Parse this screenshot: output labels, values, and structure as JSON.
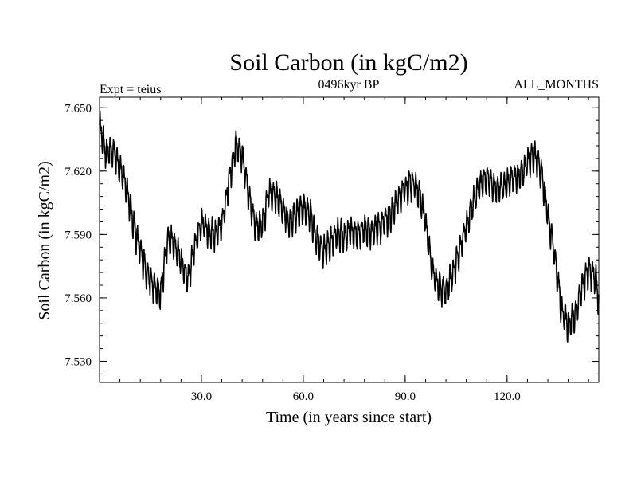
{
  "chart_data": {
    "type": "line",
    "title": "Soil Carbon (in kgC/m2)",
    "subtitle_left": "Expt = teius",
    "subtitle_center": "0496kyr BP",
    "subtitle_right": "ALL_MONTHS",
    "xlabel": "Time (in years since start)",
    "ylabel": "Soil Carbon (in kgC/m2)",
    "xlim": [
      0,
      147
    ],
    "ylim": [
      7.52,
      7.655
    ],
    "xticks": [
      30,
      60,
      90,
      120
    ],
    "xtick_labels": [
      "30.0",
      "60.0",
      "90.0",
      "120.0"
    ],
    "yticks": [
      7.53,
      7.56,
      7.59,
      7.62,
      7.65
    ],
    "ytick_labels": [
      "7.530",
      "7.560",
      "7.590",
      "7.620",
      "7.650"
    ],
    "grid": false,
    "series": [
      {
        "name": "Soil Carbon",
        "color": "#000000",
        "x": [
          0,
          2,
          4,
          6,
          8,
          10,
          12,
          14,
          16,
          18,
          20,
          22,
          24,
          26,
          28,
          30,
          32,
          34,
          36,
          38,
          40,
          42,
          44,
          46,
          48,
          50,
          52,
          54,
          56,
          58,
          60,
          62,
          64,
          66,
          68,
          70,
          72,
          74,
          76,
          78,
          80,
          82,
          84,
          86,
          88,
          90,
          92,
          94,
          96,
          98,
          100,
          102,
          104,
          106,
          108,
          110,
          112,
          114,
          116,
          118,
          120,
          122,
          124,
          126,
          128,
          130,
          132,
          134,
          136,
          138,
          140,
          142,
          144,
          146,
          147
        ],
        "values": [
          7.642,
          7.628,
          7.63,
          7.622,
          7.612,
          7.595,
          7.582,
          7.572,
          7.565,
          7.562,
          7.588,
          7.586,
          7.578,
          7.568,
          7.584,
          7.596,
          7.592,
          7.59,
          7.594,
          7.615,
          7.632,
          7.628,
          7.608,
          7.593,
          7.595,
          7.61,
          7.608,
          7.602,
          7.596,
          7.6,
          7.603,
          7.6,
          7.587,
          7.582,
          7.586,
          7.591,
          7.589,
          7.592,
          7.59,
          7.593,
          7.591,
          7.594,
          7.596,
          7.6,
          7.606,
          7.612,
          7.615,
          7.61,
          7.596,
          7.572,
          7.565,
          7.563,
          7.572,
          7.582,
          7.594,
          7.605,
          7.614,
          7.617,
          7.613,
          7.612,
          7.614,
          7.617,
          7.618,
          7.624,
          7.628,
          7.62,
          7.6,
          7.58,
          7.555,
          7.547,
          7.552,
          7.565,
          7.573,
          7.57,
          7.558
        ]
      }
    ]
  }
}
